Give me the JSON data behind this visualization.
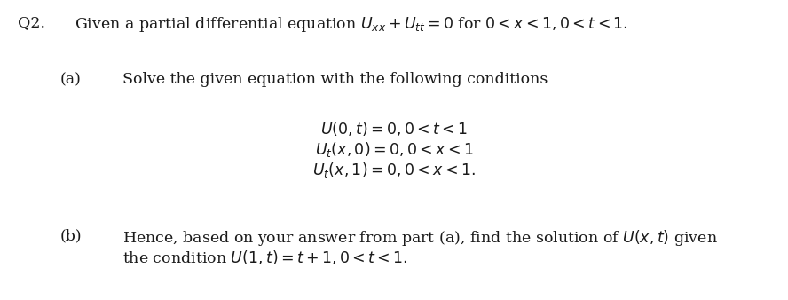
{
  "background_color": "#ffffff",
  "question_number": "Q2.",
  "main_text": "Given a partial differential equation $U_{xx} + U_{tt} = 0$ for $0 < x < 1, 0 < t < 1.$",
  "part_a_label": "(a)",
  "part_a_text": "Solve the given equation with the following conditions",
  "conditions": [
    "$U(0,t) = 0, 0 < t < 1$",
    "$U_t(x,0) = 0, 0 < x < 1$",
    "$U_t(x,1) = 0, 0 < x < 1.$"
  ],
  "part_b_label": "(b)",
  "part_b_line1": "Hence, based on your answer from part (a), find the solution of $U(x, t)$ given",
  "part_b_line2": "the condition $U(1, t) = t + 1, 0 < t < 1.$",
  "font_size": 12.5,
  "text_color": "#1a1a1a"
}
